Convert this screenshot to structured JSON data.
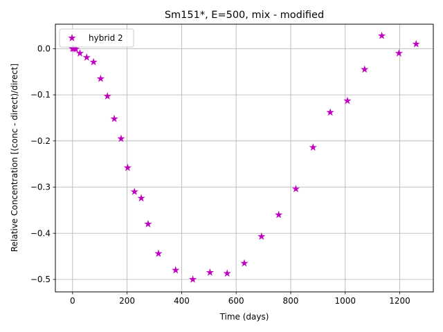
{
  "chart_data": {
    "type": "scatter",
    "title": "Sm151*, E=500, mix - modified",
    "xlabel": "Time (days)",
    "ylabel": "Relative Concentration [(conc - direct)/direct]",
    "xlim": [
      -63,
      1323
    ],
    "ylim": [
      -0.527,
      0.053
    ],
    "xticks": [
      0,
      200,
      400,
      600,
      800,
      1000,
      1200
    ],
    "yticks": [
      0.0,
      -0.1,
      -0.2,
      -0.3,
      -0.4,
      -0.5
    ],
    "xtick_labels": [
      "0",
      "200",
      "400",
      "600",
      "800",
      "1000",
      "1200"
    ],
    "ytick_labels": [
      "0.0",
      "−0.1",
      "−0.2",
      "−0.3",
      "−0.4",
      "−0.5"
    ],
    "grid": true,
    "legend_position": "upper-left",
    "series": [
      {
        "name": "hybrid 2",
        "color": "#bf00bf",
        "marker": "star",
        "x": [
          0,
          5,
          12,
          27,
          52,
          77,
          103,
          128,
          153,
          178,
          202,
          227,
          252,
          277,
          315,
          378,
          441,
          504,
          567,
          630,
          693,
          756,
          819,
          882,
          945,
          1008,
          1071,
          1134,
          1197,
          1260
        ],
        "y": [
          0.0,
          0.0,
          -0.001,
          -0.01,
          -0.019,
          -0.029,
          -0.065,
          -0.103,
          -0.152,
          -0.195,
          -0.258,
          -0.31,
          -0.324,
          -0.38,
          -0.444,
          -0.48,
          -0.5,
          -0.485,
          -0.487,
          -0.465,
          -0.407,
          -0.36,
          -0.304,
          -0.214,
          -0.138,
          -0.113,
          -0.045,
          0.028,
          -0.01,
          0.01
        ]
      }
    ]
  }
}
